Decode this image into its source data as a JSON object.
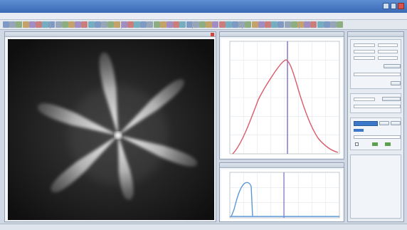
{
  "window": {
    "title": ""
  },
  "viewer": {
    "title": "",
    "readout": [
      "",
      ""
    ]
  },
  "plot_top": {
    "title": "",
    "legend": "",
    "marker_label": ""
  },
  "plot_bottom": {
    "title": "",
    "marker_label": ""
  },
  "side_panel": {
    "title": ""
  },
  "status": {
    "text": ""
  },
  "colors": {
    "titlebar": "#4a7cc6",
    "curve_top": "#d95b6a",
    "curve_bottom": "#5b97d6",
    "marker": "#7a70c8",
    "accent": "#3b78c9"
  }
}
